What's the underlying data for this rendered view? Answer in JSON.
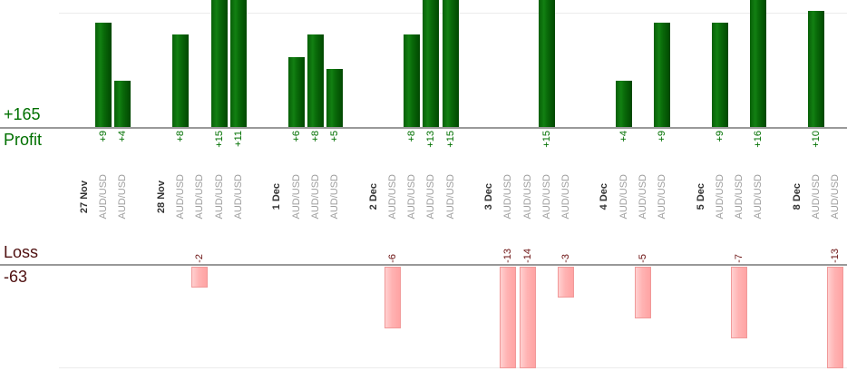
{
  "labels": {
    "profit_total": "+165",
    "profit_axis": "Profit",
    "loss_axis": "Loss",
    "loss_total": "-63"
  },
  "chart_data": {
    "type": "bar",
    "symbol": "AUD/USD",
    "profit_axis_label": "Profit",
    "loss_axis_label": "Loss",
    "profit_total": 165,
    "loss_total": -63,
    "groups": [
      {
        "date": "27 Nov",
        "trades": [
          9,
          4
        ]
      },
      {
        "date": "28 Nov",
        "trades": [
          8,
          -2,
          15,
          11
        ]
      },
      {
        "date": "1 Dec",
        "trades": [
          6,
          8,
          5
        ]
      },
      {
        "date": "2 Dec",
        "trades": [
          -6,
          8,
          13,
          15
        ]
      },
      {
        "date": "3 Dec",
        "trades": [
          -13,
          -14,
          15,
          -3
        ]
      },
      {
        "date": "4 Dec",
        "trades": [
          4,
          -5,
          9
        ]
      },
      {
        "date": "5 Dec",
        "trades": [
          9,
          -7,
          16
        ]
      },
      {
        "date": "8 Dec",
        "trades": [
          10,
          -13
        ]
      }
    ],
    "layout_hints": {
      "profit_bars_clipped_at_top": true,
      "loss_bars_clipped_at_bottom": true,
      "x_labels_rotated": true
    }
  },
  "colors": {
    "profit_text": "#007000",
    "loss_text": "#6b1111",
    "loss_heading": "#4f1010",
    "loss_bar_fill": "#ffb3b3",
    "loss_bar_border": "#f19999",
    "date_text": "#333333",
    "symbol_text": "#9e9e9e",
    "axis_line": "#999999",
    "gridline": "#ececec"
  }
}
